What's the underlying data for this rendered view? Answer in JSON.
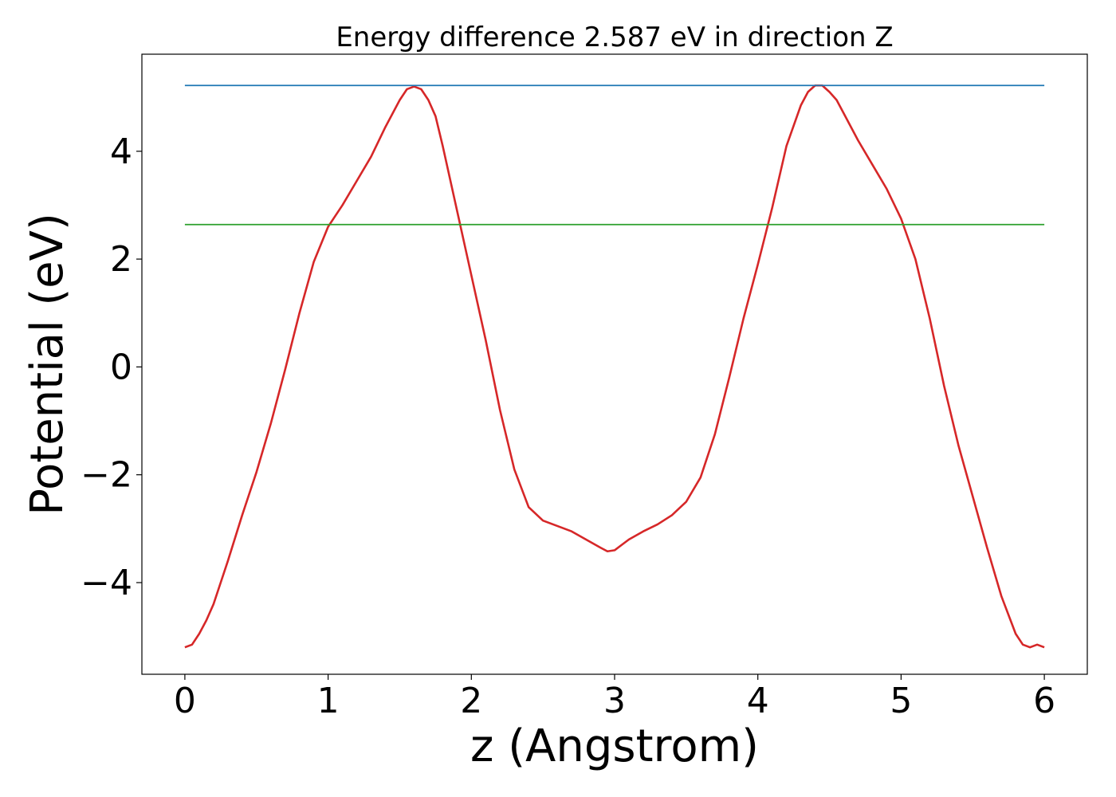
{
  "chart_data": {
    "type": "line",
    "title": "Energy difference 2.587 eV in direction Z",
    "xlabel": "z (Angstrom)",
    "ylabel": "Potential (eV)",
    "xlim": [
      -0.3,
      6.3
    ],
    "ylim": [
      -5.7,
      5.8
    ],
    "xticks": [
      0,
      1,
      2,
      3,
      4,
      5,
      6
    ],
    "yticks": [
      -4,
      -2,
      0,
      2,
      4
    ],
    "ytick_labels": [
      "−4",
      "−2",
      "0",
      "2",
      "4"
    ],
    "grid": false,
    "series": [
      {
        "color": "#d62728",
        "x": [
          0.0,
          0.05,
          0.1,
          0.15,
          0.2,
          0.25,
          0.3,
          0.4,
          0.5,
          0.6,
          0.7,
          0.8,
          0.9,
          1.0,
          1.05,
          1.1,
          1.2,
          1.3,
          1.4,
          1.5,
          1.55,
          1.6,
          1.65,
          1.7,
          1.75,
          1.8,
          1.9,
          2.0,
          2.1,
          2.2,
          2.3,
          2.4,
          2.5,
          2.6,
          2.7,
          2.8,
          2.9,
          2.95,
          3.0,
          3.05,
          3.1,
          3.2,
          3.3,
          3.4,
          3.5,
          3.6,
          3.7,
          3.8,
          3.9,
          4.0,
          4.1,
          4.2,
          4.3,
          4.35,
          4.4,
          4.45,
          4.5,
          4.55,
          4.6,
          4.7,
          4.8,
          4.9,
          5.0,
          5.1,
          5.2,
          5.3,
          5.4,
          5.5,
          5.6,
          5.7,
          5.8,
          5.85,
          5.9,
          5.95,
          6.0
        ],
        "y": [
          -5.2,
          -5.15,
          -4.95,
          -4.7,
          -4.4,
          -4.0,
          -3.6,
          -2.75,
          -1.95,
          -1.05,
          -0.05,
          1.0,
          1.95,
          2.6,
          2.8,
          3.0,
          3.45,
          3.9,
          4.45,
          4.95,
          5.15,
          5.2,
          5.15,
          4.95,
          4.65,
          4.1,
          2.9,
          1.7,
          0.5,
          -0.8,
          -1.9,
          -2.6,
          -2.85,
          -2.95,
          -3.05,
          -3.2,
          -3.35,
          -3.42,
          -3.4,
          -3.3,
          -3.2,
          -3.05,
          -2.92,
          -2.75,
          -2.5,
          -2.05,
          -1.25,
          -0.2,
          0.9,
          1.9,
          2.95,
          4.1,
          4.85,
          5.1,
          5.22,
          5.22,
          5.1,
          4.95,
          4.7,
          4.2,
          3.75,
          3.3,
          2.75,
          2.0,
          0.9,
          -0.35,
          -1.45,
          -2.4,
          -3.35,
          -4.25,
          -4.95,
          -5.15,
          -5.2,
          -5.15,
          -5.2
        ]
      },
      {
        "color": "#1f77b4",
        "x": [
          0.0,
          6.0
        ],
        "y": [
          5.22,
          5.22
        ]
      },
      {
        "color": "#2ca02c",
        "x": [
          0.0,
          6.0
        ],
        "y": [
          2.64,
          2.64
        ]
      }
    ]
  }
}
